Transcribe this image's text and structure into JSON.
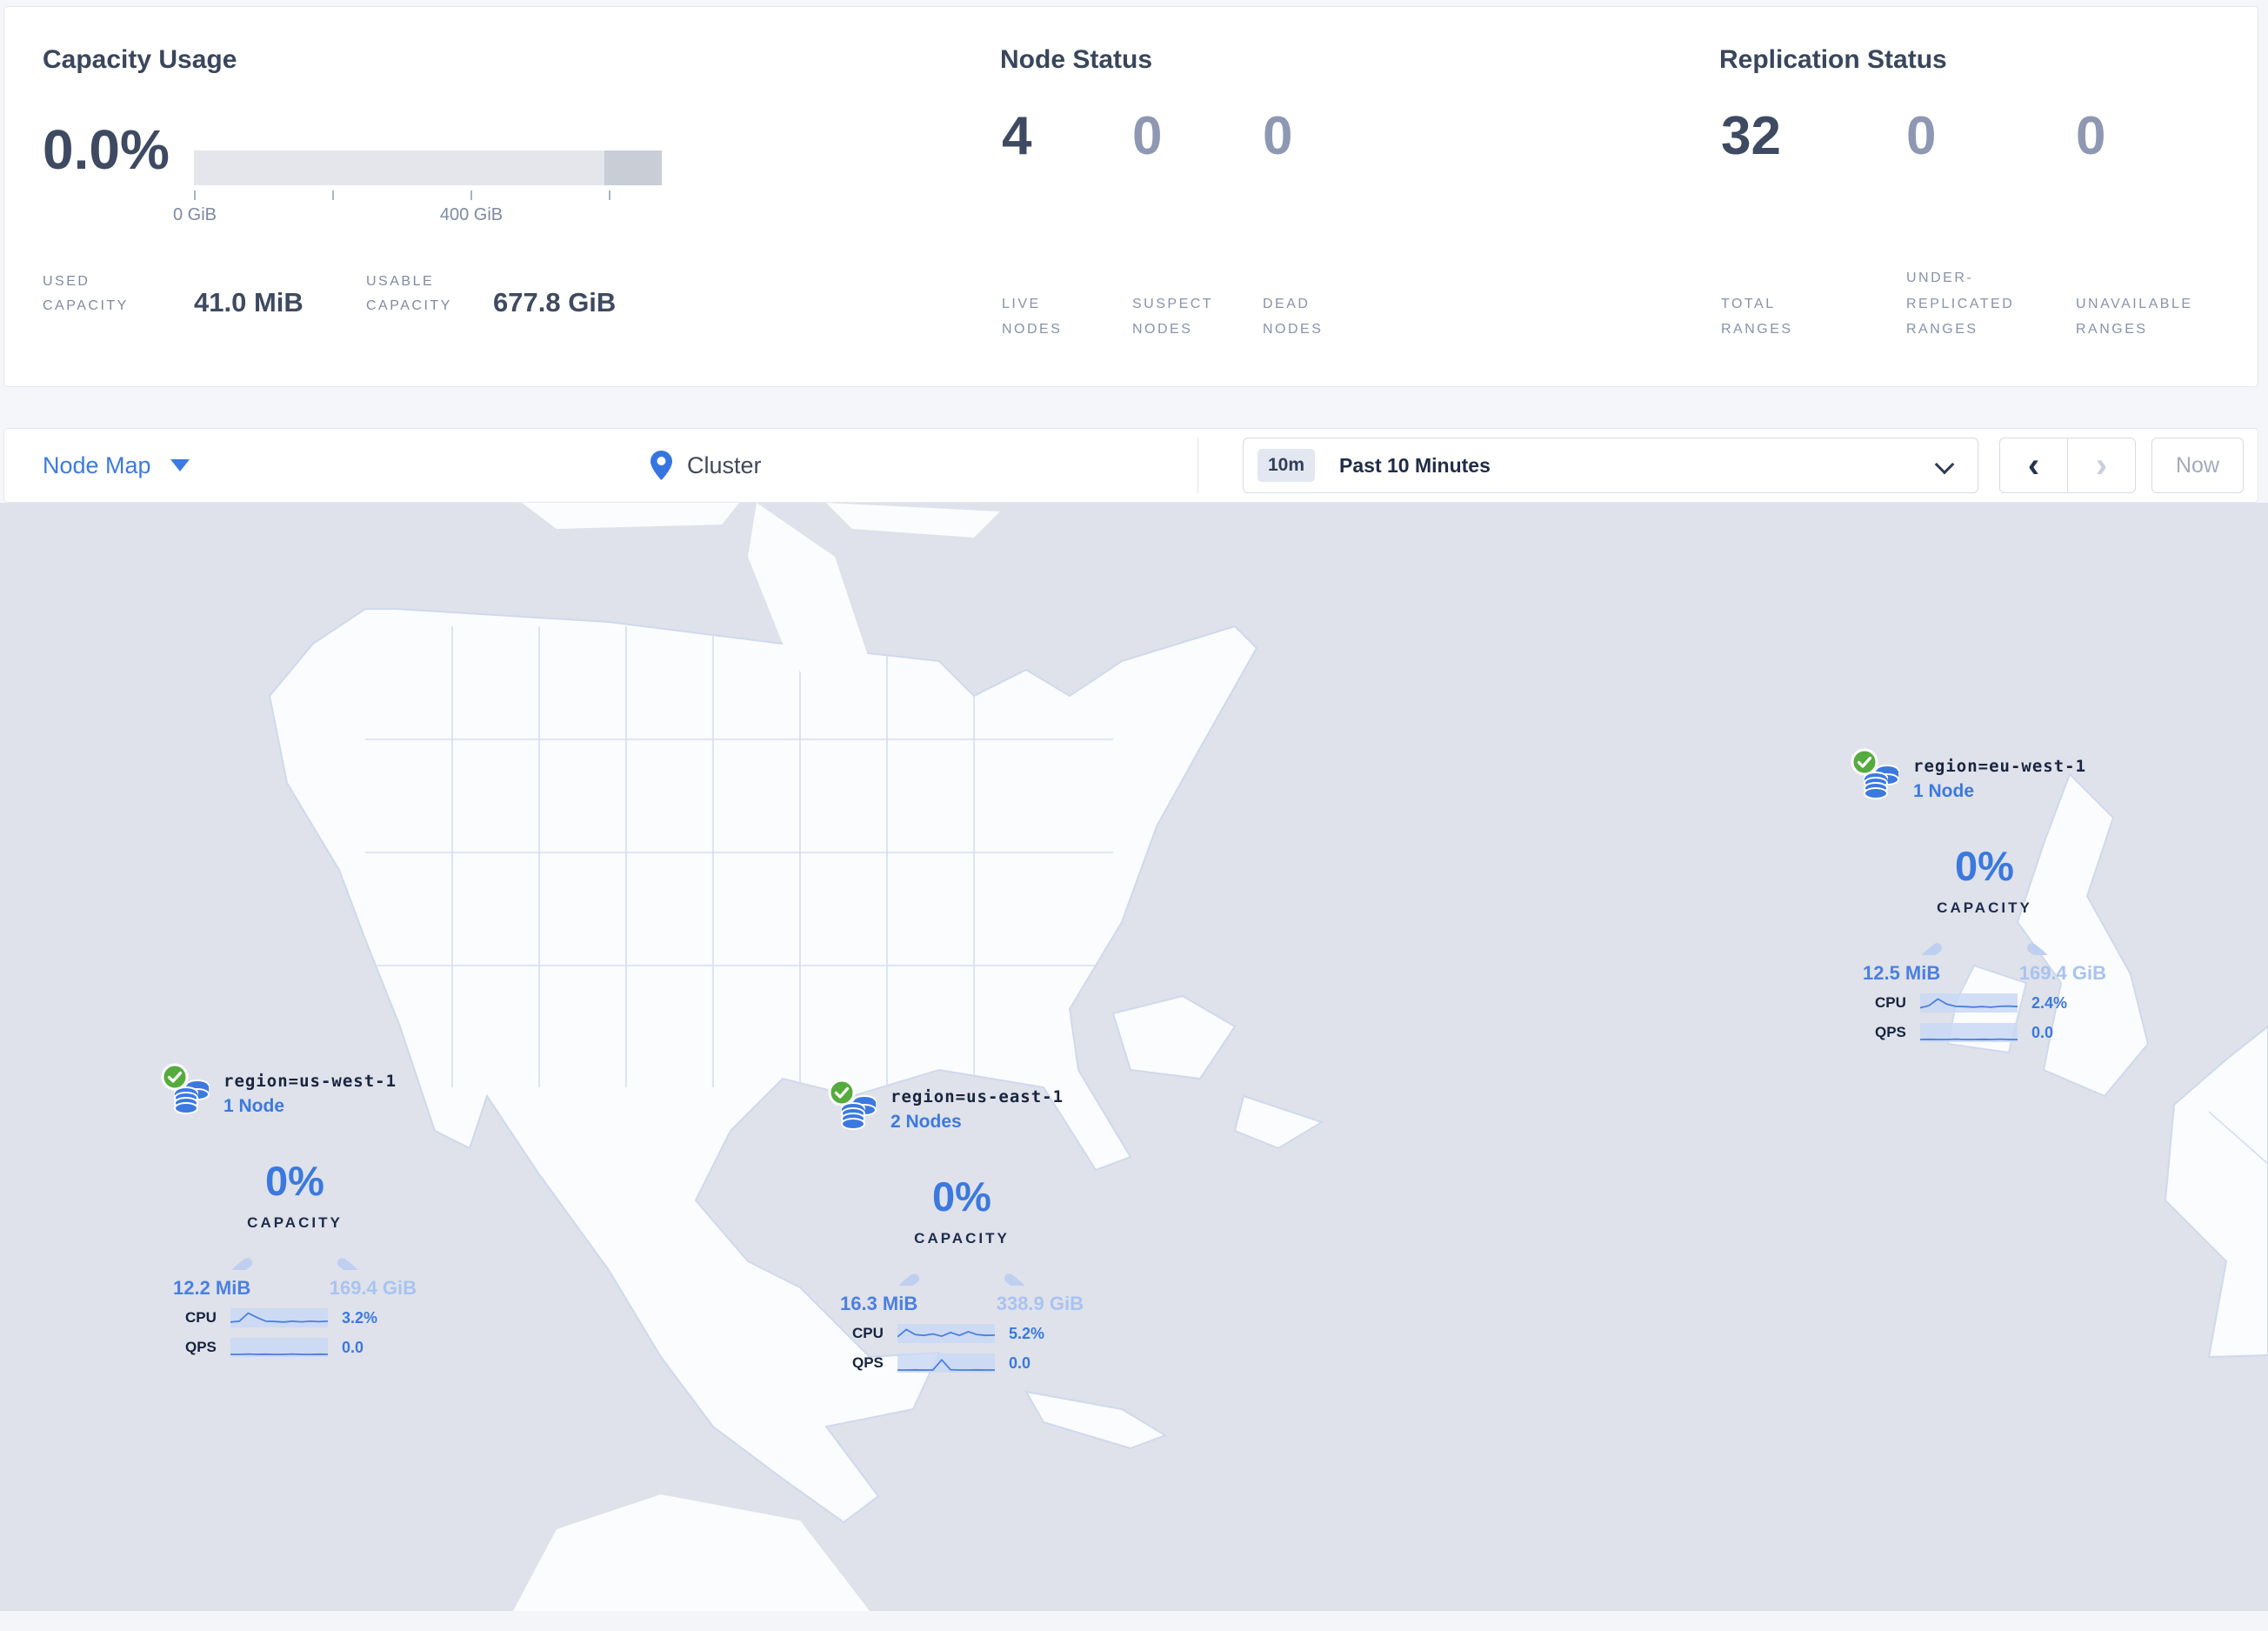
{
  "summary": {
    "capacity": {
      "title": "Capacity Usage",
      "percent": "0.0%",
      "tick_zero": "0 GiB",
      "tick_400": "400 GiB",
      "used_label": "USED CAPACITY",
      "used_value": "41.0 MiB",
      "usable_label": "USABLE CAPACITY",
      "usable_value": "677.8 GiB"
    },
    "nodes": {
      "title": "Node Status",
      "items": [
        {
          "value": "4",
          "label": "LIVE NODES"
        },
        {
          "value": "0",
          "label": "SUSPECT NODES"
        },
        {
          "value": "0",
          "label": "DEAD NODES"
        }
      ]
    },
    "replication": {
      "title": "Replication Status",
      "items": [
        {
          "value": "32",
          "label": "TOTAL RANGES"
        },
        {
          "value": "0",
          "label": "UNDER-REPLICATED RANGES"
        },
        {
          "value": "0",
          "label": "UNAVAILABLE RANGES"
        }
      ]
    }
  },
  "toolbar": {
    "view_label": "Node Map",
    "breadcrumb": "Cluster",
    "time_badge": "10m",
    "time_label": "Past 10 Minutes",
    "now_label": "Now"
  },
  "icons": {
    "caret": "caret-down-icon",
    "pin": "map-pin-icon",
    "time_chevron": "chevron-down-icon",
    "prev": "chevron-left-icon",
    "next": "chevron-right-icon",
    "healthy": "green-check-icon",
    "region": "database-stack-icon"
  },
  "colors": {
    "accent_blue": "#3b79df",
    "healthy_green": "#56ab3f",
    "num_dark": "#3e4a61",
    "num_light": "#8e98b2",
    "map_base": "#dfe2ea",
    "gauge_arc": "#bfcfef"
  },
  "map": {
    "regions": [
      {
        "label": "region=us-west-1",
        "nodes": "1 Node",
        "percent": "0%",
        "capacity_label": "CAPACITY",
        "used": "12.2 MiB",
        "total": "169.4 GiB",
        "cpu_label": "CPU",
        "cpu": "3.2%",
        "cpu_spark": [
          0.25,
          0.3,
          0.85,
          0.55,
          0.3,
          0.28,
          0.25,
          0.3,
          0.26,
          0.3,
          0.27,
          0.3
        ],
        "qps_label": "QPS",
        "qps": "0.0",
        "qps_spark": [
          0.06,
          0.06,
          0.08,
          0.06,
          0.07,
          0.06,
          0.06,
          0.08,
          0.06,
          0.06,
          0.07,
          0.06
        ]
      },
      {
        "label": "region=us-east-1",
        "nodes": "2 Nodes",
        "percent": "0%",
        "capacity_label": "CAPACITY",
        "used": "16.3 MiB",
        "total": "338.9 GiB",
        "cpu_label": "CPU",
        "cpu": "5.2%",
        "cpu_spark": [
          0.3,
          0.8,
          0.45,
          0.4,
          0.5,
          0.35,
          0.6,
          0.4,
          0.65,
          0.45,
          0.4,
          0.42
        ],
        "qps_label": "QPS",
        "qps": "0.0",
        "qps_spark": [
          0.06,
          0.06,
          0.07,
          0.06,
          0.06,
          0.75,
          0.08,
          0.06,
          0.06,
          0.07,
          0.06,
          0.06
        ]
      },
      {
        "label": "region=eu-west-1",
        "nodes": "1 Node",
        "percent": "0%",
        "capacity_label": "CAPACITY",
        "used": "12.5 MiB",
        "total": "169.4 GiB",
        "cpu_label": "CPU",
        "cpu": "2.4%",
        "cpu_spark": [
          0.2,
          0.35,
          0.8,
          0.45,
          0.3,
          0.28,
          0.25,
          0.28,
          0.24,
          0.3,
          0.32,
          0.28
        ],
        "qps_label": "QPS",
        "qps": "0.0",
        "qps_spark": [
          0.06,
          0.07,
          0.06,
          0.06,
          0.08,
          0.06,
          0.06,
          0.07,
          0.06,
          0.08,
          0.06,
          0.06
        ]
      }
    ]
  }
}
